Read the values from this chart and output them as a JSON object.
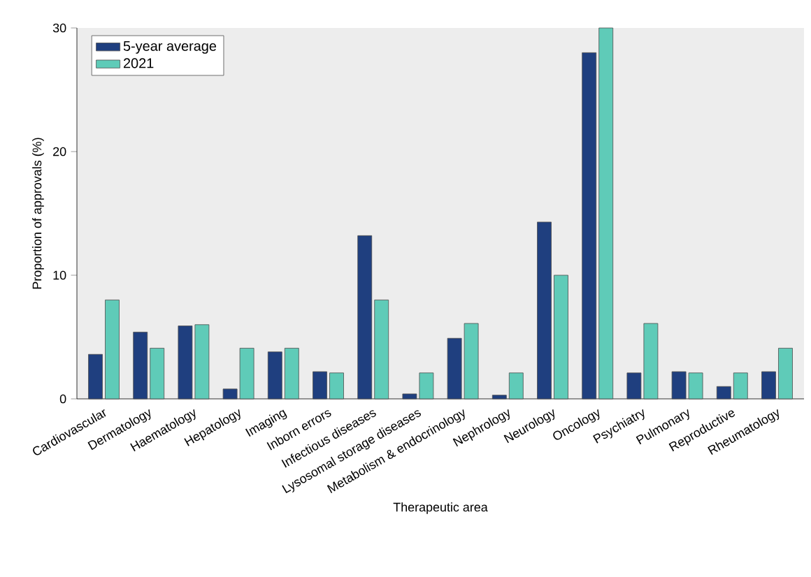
{
  "chart_data": {
    "type": "bar",
    "xlabel": "Therapeutic area",
    "ylabel": "Proportion of approvals (%)",
    "categories": [
      "Cardiovascular",
      "Dermatology",
      "Haematology",
      "Hepatology",
      "Imaging",
      "Inborn errors",
      "Infectious diseases",
      "Lysosomal storage diseases",
      "Metabolism & endocrinology",
      "Nephrology",
      "Neurology",
      "Oncology",
      "Psychiatry",
      "Pulmonary",
      "Reproductive",
      "Rheumatology"
    ],
    "series": [
      {
        "name": "5-year average",
        "color": "#1f3f7f",
        "values": [
          3.6,
          5.4,
          5.9,
          0.8,
          3.8,
          2.2,
          13.2,
          0.4,
          4.9,
          0.3,
          14.3,
          28.0,
          2.1,
          2.2,
          1.0,
          2.2
        ]
      },
      {
        "name": "2021",
        "color": "#5fcbb8",
        "values": [
          8.0,
          4.1,
          6.0,
          4.1,
          4.1,
          2.1,
          8.0,
          2.1,
          6.1,
          2.1,
          10.0,
          30.0,
          6.1,
          2.1,
          2.1,
          4.1
        ]
      }
    ],
    "ylim": [
      0,
      30
    ],
    "yticks": [
      0,
      10,
      20,
      30
    ],
    "legend": "top left"
  }
}
